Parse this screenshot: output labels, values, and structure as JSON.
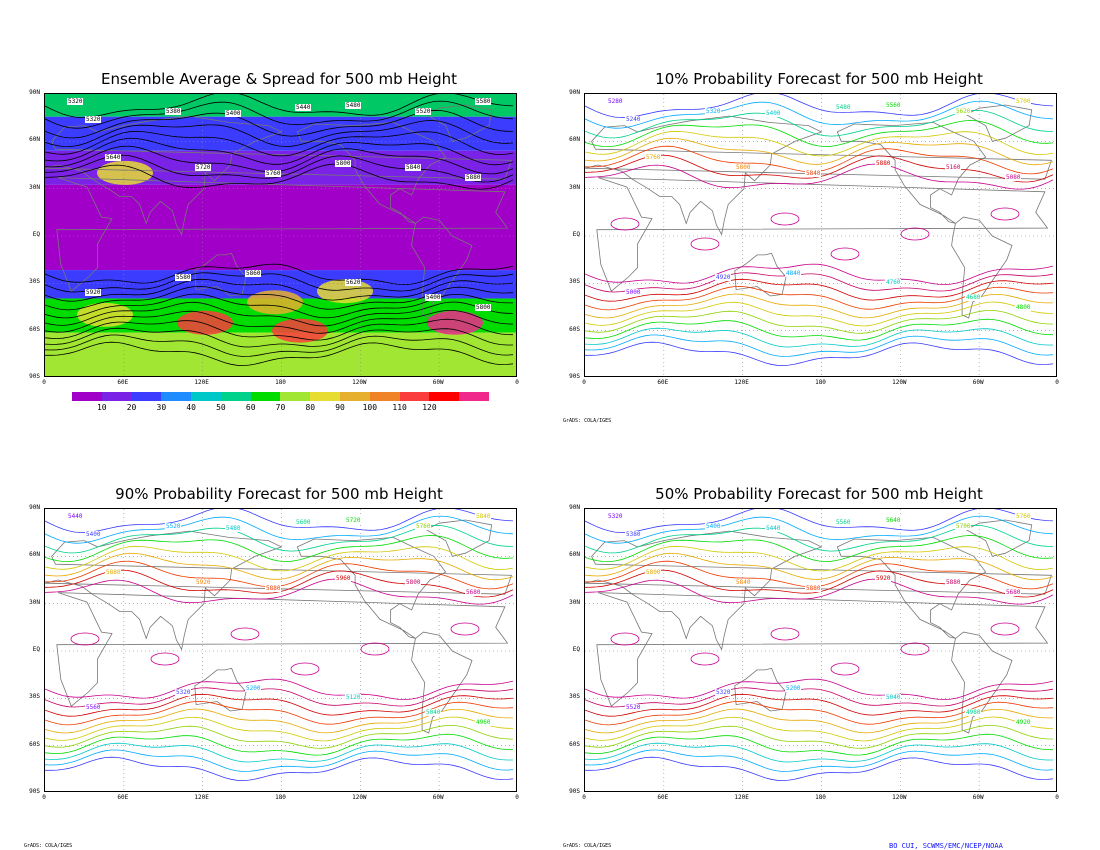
{
  "panels": [
    {
      "id": "ensemble",
      "title": "Ensemble Average & Spread for 500 mb Height",
      "shaded": true,
      "contour_labels": [
        "5320",
        "5320",
        "5380",
        "5400",
        "5440",
        "5480",
        "5520",
        "5580",
        "5640",
        "5720",
        "5760",
        "5800",
        "5840",
        "5880",
        "5920",
        "5580",
        "5860",
        "5620",
        "5400",
        "5800"
      ]
    },
    {
      "id": "p10",
      "title": "10% Probability Forecast for 500 mb Height",
      "shaded": false,
      "contour_labels": [
        "5280",
        "5240",
        "5320",
        "5400",
        "5480",
        "5560",
        "5620",
        "5700",
        "5760",
        "5800",
        "5840",
        "5880",
        "5160",
        "5080",
        "5000",
        "4920",
        "4840",
        "4760",
        "4680",
        "4800"
      ]
    },
    {
      "id": "p90",
      "title": "90% Probability Forecast for 500 mb Height",
      "shaded": false,
      "contour_labels": [
        "5440",
        "5400",
        "5520",
        "5480",
        "5600",
        "5720",
        "5760",
        "5840",
        "5880",
        "5920",
        "5880",
        "5960",
        "5800",
        "5680",
        "5560",
        "5320",
        "5200",
        "5120",
        "5040",
        "4960"
      ]
    },
    {
      "id": "p50",
      "title": "50% Probability Forecast for 500 mb Height",
      "shaded": false,
      "contour_labels": [
        "5320",
        "5380",
        "5400",
        "5440",
        "5560",
        "5640",
        "5700",
        "5760",
        "5800",
        "5840",
        "5880",
        "5920",
        "5880",
        "5680",
        "5520",
        "5320",
        "5200",
        "5040",
        "4980",
        "4920"
      ]
    }
  ],
  "axes": {
    "lat_labels": [
      "90N",
      "60N",
      "30N",
      "EQ",
      "30S",
      "60S",
      "90S"
    ],
    "lon_labels": [
      "0",
      "60E",
      "120E",
      "180",
      "120W",
      "60W",
      "0"
    ]
  },
  "colorbar": {
    "ticks": [
      "10",
      "20",
      "30",
      "40",
      "50",
      "60",
      "70",
      "80",
      "90",
      "100",
      "110",
      "120"
    ],
    "colors": [
      "#a000c8",
      "#7a22e6",
      "#3c3cff",
      "#1e8cff",
      "#00c8c8",
      "#00d28c",
      "#00dc00",
      "#a0e632",
      "#e6dc32",
      "#e6af2d",
      "#f08228",
      "#fa3c3c",
      "#ff0000",
      "#f0288c"
    ]
  },
  "footnotes": {
    "grads": "GrADS: COLA/IGES",
    "credit": "BO CUI, SCWMS/EMC/NCEP/NOAA"
  },
  "contour_colors": [
    "#7d00ff",
    "#3c3cff",
    "#00aaff",
    "#00c8c8",
    "#00d28c",
    "#00dc00",
    "#8cd200",
    "#d2c800",
    "#e6aa00",
    "#f08200",
    "#f03c00",
    "#d20000",
    "#c80064",
    "#c8008c"
  ]
}
